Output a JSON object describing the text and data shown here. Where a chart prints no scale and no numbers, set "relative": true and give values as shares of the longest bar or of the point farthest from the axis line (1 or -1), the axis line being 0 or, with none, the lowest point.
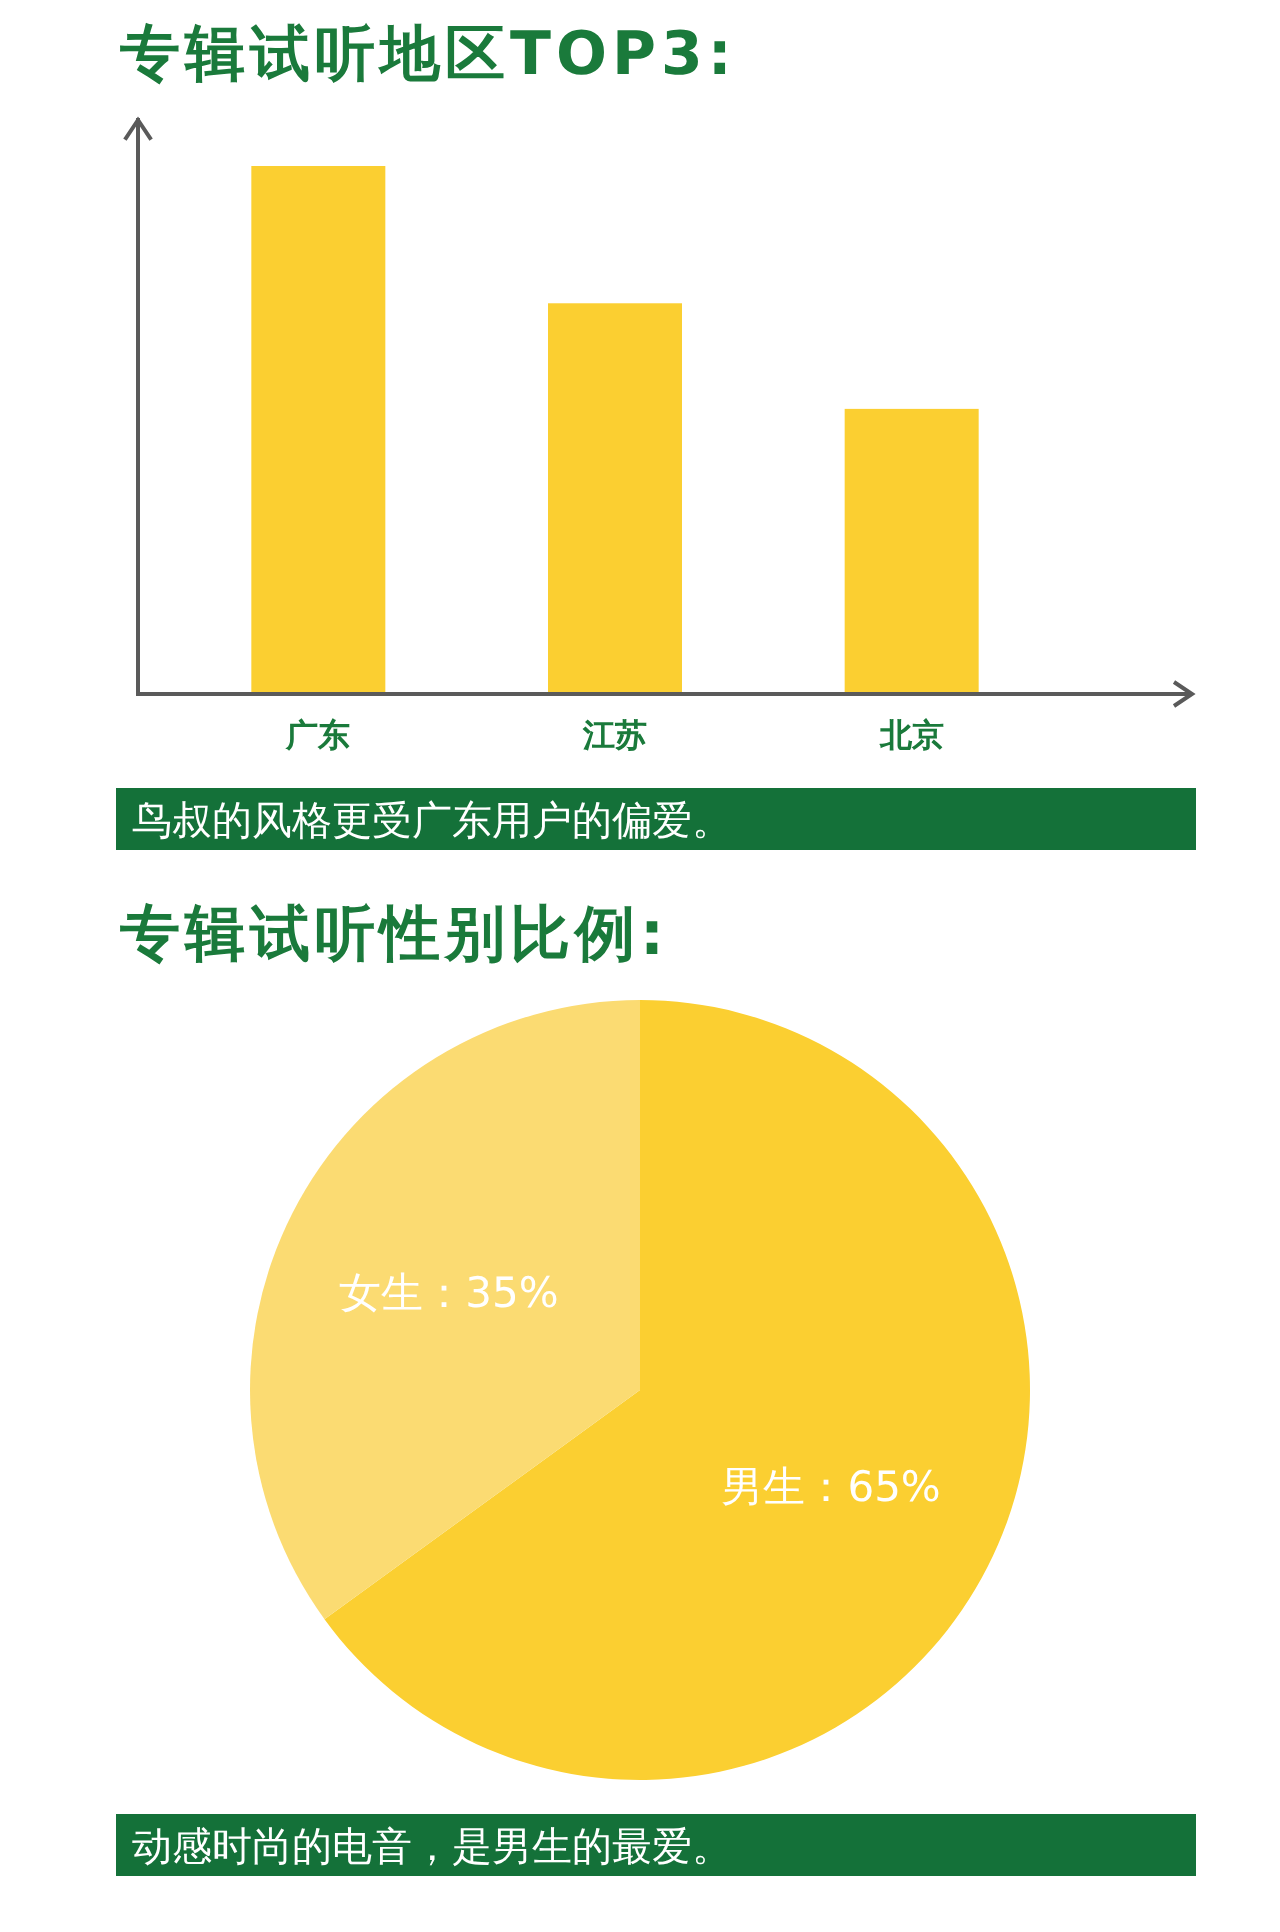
{
  "chart_data": [
    {
      "type": "bar",
      "title": "专辑试听地区TOP3:",
      "categories": [
        "广东",
        "江苏",
        "北京"
      ],
      "values": [
        1,
        0.74,
        0.54
      ],
      "relative": true,
      "color": "#fbcf31",
      "annotations": [
        "鸟叔的风格更受广东用户的偏爱。"
      ]
    },
    {
      "type": "pie",
      "title": "专辑试听性别比例:",
      "categories": [
        "男生",
        "女生"
      ],
      "values": [
        65,
        35
      ],
      "colors": [
        "#fbcf31",
        "#fbdb72"
      ],
      "value_labels": [
        "65%",
        "35%"
      ],
      "annotations": [
        "动感时尚的电音，是男生的最爱。"
      ]
    }
  ]
}
